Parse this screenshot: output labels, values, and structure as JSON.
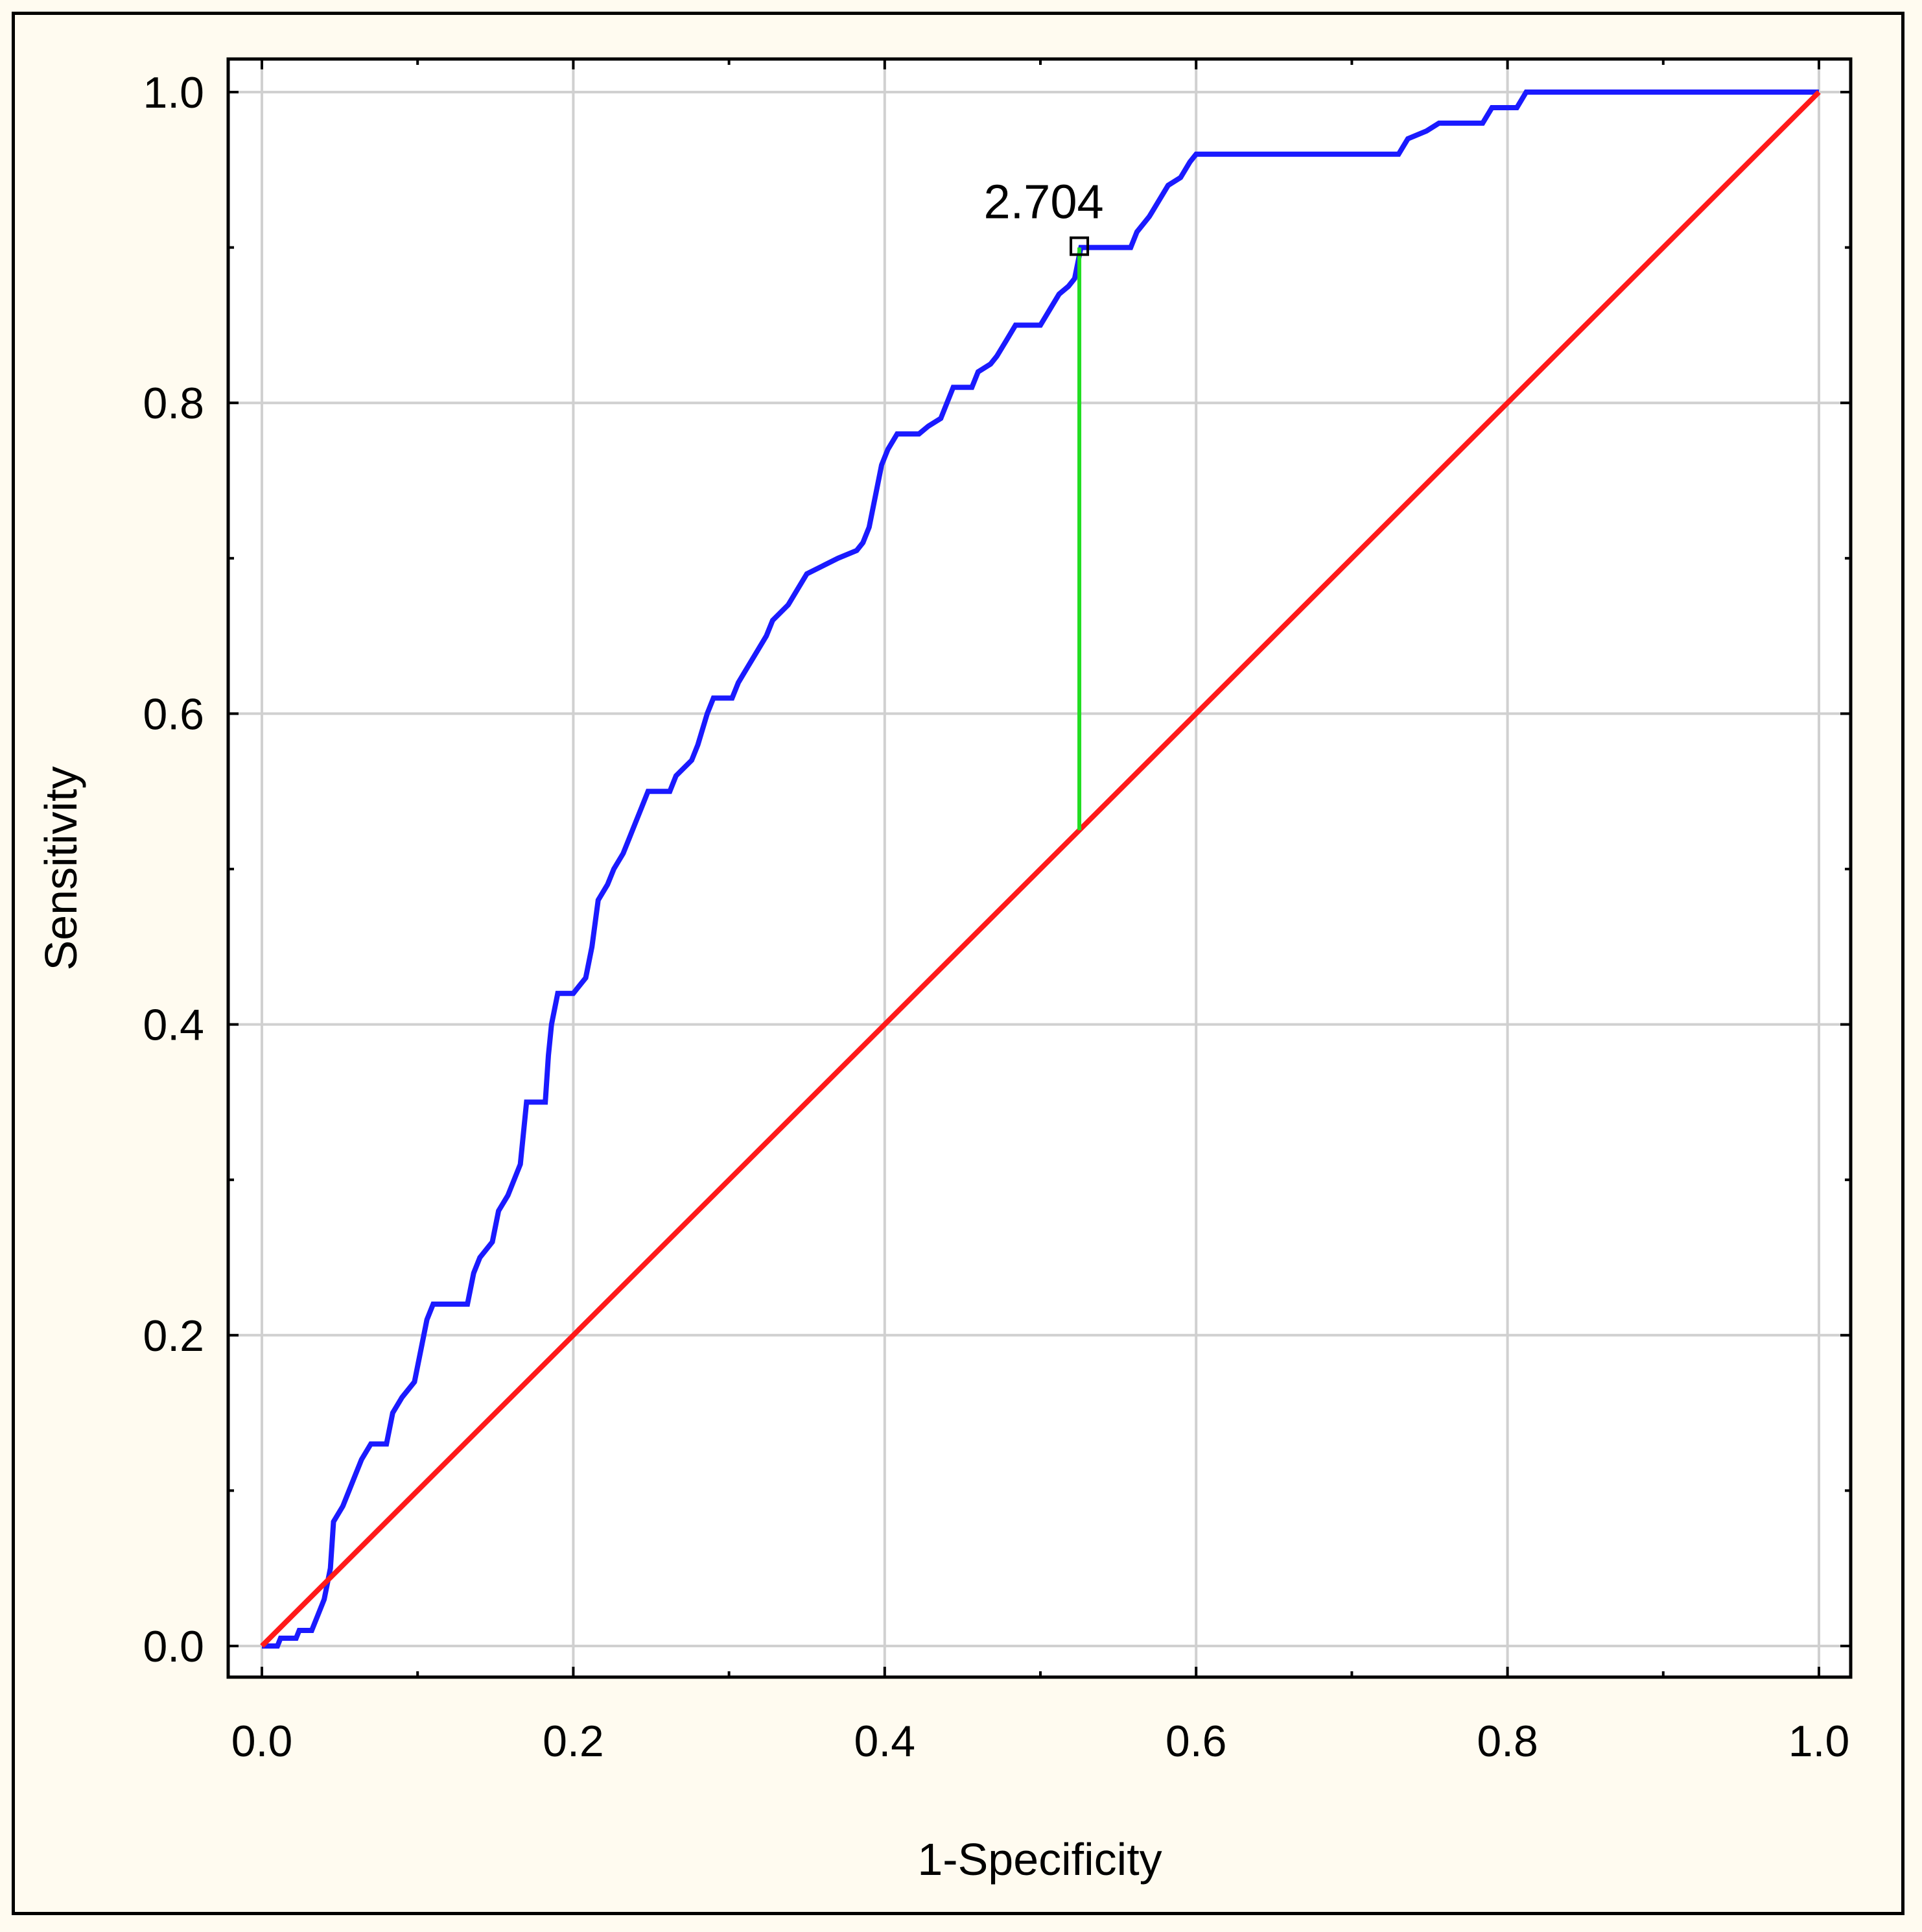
{
  "chart_data": {
    "type": "line",
    "xlabel": "1-Specificity",
    "ylabel": "Sensitivity",
    "xlim": [
      0,
      1
    ],
    "ylim": [
      0,
      1
    ],
    "x_ticks": [
      "0.0",
      "0.2",
      "0.4",
      "0.6",
      "0.8",
      "1.0"
    ],
    "y_ticks": [
      "0.0",
      "0.2",
      "0.4",
      "0.6",
      "0.8",
      "1.0"
    ],
    "grid": true,
    "colors": {
      "roc": "#1a1aff",
      "reference": "#ff1a1a",
      "cutoff": "#22dd22",
      "grid": "#d0d0d0"
    },
    "series": [
      {
        "points": [
          [
            0.0,
            0.0
          ],
          [
            0.01,
            0.0
          ],
          [
            0.012,
            0.005
          ],
          [
            0.022,
            0.005
          ],
          [
            0.024,
            0.01
          ],
          [
            0.032,
            0.01
          ],
          [
            0.036,
            0.02
          ],
          [
            0.04,
            0.03
          ],
          [
            0.044,
            0.05
          ],
          [
            0.046,
            0.08
          ],
          [
            0.052,
            0.09
          ],
          [
            0.056,
            0.1
          ],
          [
            0.06,
            0.11
          ],
          [
            0.064,
            0.12
          ],
          [
            0.07,
            0.13
          ],
          [
            0.08,
            0.13
          ],
          [
            0.084,
            0.15
          ],
          [
            0.09,
            0.16
          ],
          [
            0.098,
            0.17
          ],
          [
            0.102,
            0.19
          ],
          [
            0.106,
            0.21
          ],
          [
            0.11,
            0.22
          ],
          [
            0.132,
            0.22
          ],
          [
            0.136,
            0.24
          ],
          [
            0.14,
            0.25
          ],
          [
            0.148,
            0.26
          ],
          [
            0.152,
            0.28
          ],
          [
            0.158,
            0.29
          ],
          [
            0.162,
            0.3
          ],
          [
            0.166,
            0.31
          ],
          [
            0.17,
            0.35
          ],
          [
            0.182,
            0.35
          ],
          [
            0.184,
            0.38
          ],
          [
            0.186,
            0.4
          ],
          [
            0.19,
            0.42
          ],
          [
            0.2,
            0.42
          ],
          [
            0.208,
            0.43
          ],
          [
            0.212,
            0.45
          ],
          [
            0.216,
            0.48
          ],
          [
            0.222,
            0.49
          ],
          [
            0.226,
            0.5
          ],
          [
            0.232,
            0.51
          ],
          [
            0.236,
            0.52
          ],
          [
            0.24,
            0.53
          ],
          [
            0.244,
            0.54
          ],
          [
            0.248,
            0.55
          ],
          [
            0.262,
            0.55
          ],
          [
            0.266,
            0.56
          ],
          [
            0.276,
            0.57
          ],
          [
            0.28,
            0.58
          ],
          [
            0.286,
            0.6
          ],
          [
            0.29,
            0.61
          ],
          [
            0.302,
            0.61
          ],
          [
            0.306,
            0.62
          ],
          [
            0.312,
            0.63
          ],
          [
            0.318,
            0.64
          ],
          [
            0.324,
            0.65
          ],
          [
            0.328,
            0.66
          ],
          [
            0.338,
            0.67
          ],
          [
            0.344,
            0.68
          ],
          [
            0.35,
            0.69
          ],
          [
            0.36,
            0.695
          ],
          [
            0.37,
            0.7
          ],
          [
            0.382,
            0.705
          ],
          [
            0.386,
            0.71
          ],
          [
            0.39,
            0.72
          ],
          [
            0.394,
            0.74
          ],
          [
            0.398,
            0.76
          ],
          [
            0.402,
            0.77
          ],
          [
            0.408,
            0.78
          ],
          [
            0.422,
            0.78
          ],
          [
            0.428,
            0.785
          ],
          [
            0.436,
            0.79
          ],
          [
            0.44,
            0.8
          ],
          [
            0.444,
            0.81
          ],
          [
            0.456,
            0.81
          ],
          [
            0.46,
            0.82
          ],
          [
            0.468,
            0.825
          ],
          [
            0.472,
            0.83
          ],
          [
            0.478,
            0.84
          ],
          [
            0.484,
            0.85
          ],
          [
            0.5,
            0.85
          ],
          [
            0.506,
            0.86
          ],
          [
            0.512,
            0.87
          ],
          [
            0.518,
            0.875
          ],
          [
            0.522,
            0.88
          ],
          [
            0.526,
            0.9
          ],
          [
            0.558,
            0.9
          ],
          [
            0.562,
            0.91
          ],
          [
            0.57,
            0.92
          ],
          [
            0.576,
            0.93
          ],
          [
            0.582,
            0.94
          ],
          [
            0.59,
            0.945
          ],
          [
            0.596,
            0.955
          ],
          [
            0.6,
            0.96
          ],
          [
            0.73,
            0.96
          ],
          [
            0.736,
            0.97
          ],
          [
            0.748,
            0.975
          ],
          [
            0.756,
            0.98
          ],
          [
            0.784,
            0.98
          ],
          [
            0.79,
            0.99
          ],
          [
            0.806,
            0.99
          ],
          [
            0.812,
            1.0
          ],
          [
            1.0,
            1.0
          ]
        ]
      },
      {
        "points": [
          [
            0.0,
            0.0
          ],
          [
            1.0,
            1.0
          ]
        ]
      }
    ],
    "cutoff": {
      "label": "2.704",
      "x": 0.525,
      "sensitivity": 0.9,
      "reference": 0.525
    }
  }
}
